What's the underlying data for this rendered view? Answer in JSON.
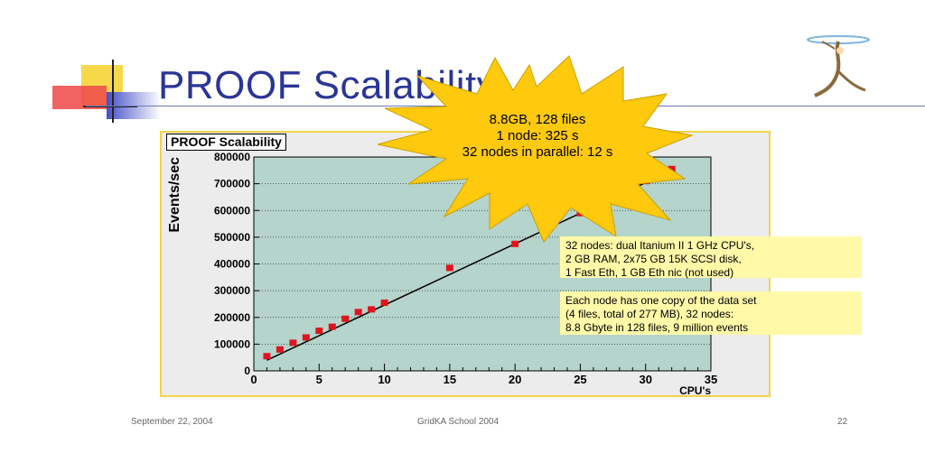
{
  "slide": {
    "title": "PROOF Scalability",
    "footer_left": "September 22, 2004",
    "footer_center": "GridKA School 2004",
    "footer_right": "22"
  },
  "callout": {
    "lines": [
      "8.8GB, 128 files",
      "1 node: 325 s",
      "32 nodes in parallel: 12 s"
    ]
  },
  "notes": [
    {
      "lines": [
        "32 nodes: dual Itanium II 1 GHz CPU's,",
        "2 GB RAM, 2x75 GB 15K SCSI disk,",
        "1 Fast Eth, 1 GB Eth nic (not used)"
      ]
    },
    {
      "lines": [
        "Each node has one copy of the data set",
        "(4 files, total of 277 MB), 32 nodes:",
        " 8.8 Gbyte in 128 files, 9 million events"
      ]
    }
  ],
  "colors": {
    "plot_bg": "#b5d4cb",
    "marker": "#e0141e",
    "callout_star": "#ffc90e",
    "title": "#2a3596"
  },
  "chart_data": {
    "type": "scatter",
    "title": "PROOF Scalability",
    "xlabel": "CPU's",
    "ylabel": "Events/sec",
    "xlim": [
      0,
      35
    ],
    "ylim": [
      0,
      800000
    ],
    "xticks": [
      0,
      5,
      10,
      15,
      20,
      25,
      30,
      35
    ],
    "yticks": [
      0,
      100000,
      200000,
      300000,
      400000,
      500000,
      600000,
      700000,
      800000
    ],
    "y_tick_labels": [
      "0",
      "100000",
      "200000",
      "300000",
      "400000",
      "500000",
      "600000",
      "700000",
      "800000"
    ],
    "grid_y": true,
    "series": [
      {
        "x": [
          1,
          2,
          3,
          4,
          5,
          6,
          7,
          8,
          9,
          10,
          15,
          20,
          25,
          30,
          31,
          32
        ],
        "y": [
          55000,
          80000,
          105000,
          125000,
          150000,
          165000,
          195000,
          220000,
          230000,
          255000,
          385000,
          475000,
          590000,
          710000,
          735000,
          755000
        ]
      }
    ],
    "fit_line": {
      "x": [
        1,
        32
      ],
      "y": [
        40000,
        750000
      ]
    }
  }
}
